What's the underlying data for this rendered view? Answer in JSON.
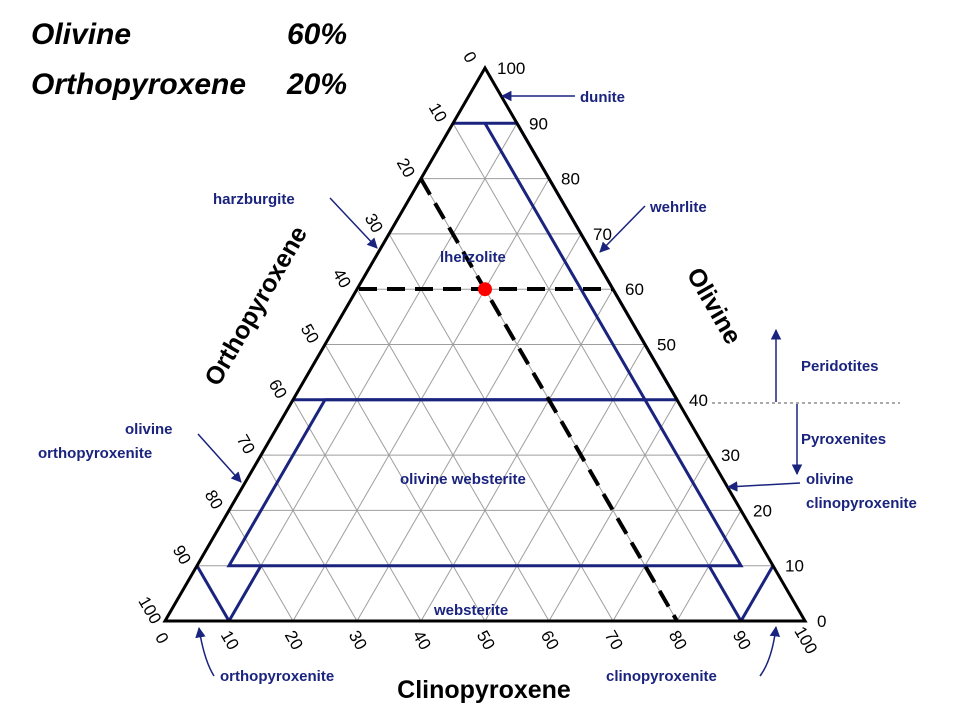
{
  "header": {
    "mineral_1": "Olivine",
    "value_1": "60%",
    "mineral_2": "Orthopyroxene",
    "value_2": "20%"
  },
  "axes": {
    "left_title": "Orthopyroxene",
    "right_title": "Olivine",
    "bottom_title": "Clinopyroxene",
    "left_ticks": [
      "0",
      "10",
      "20",
      "30",
      "40",
      "50",
      "60",
      "70",
      "80",
      "90",
      "100"
    ],
    "right_ticks": [
      "0",
      "10",
      "20",
      "30",
      "40",
      "50",
      "60",
      "70",
      "80",
      "90",
      "100"
    ],
    "bottom_ticks": [
      "10",
      "20",
      "30",
      "40",
      "50",
      "60",
      "70",
      "80",
      "90",
      "100"
    ]
  },
  "fields": {
    "dunite": "dunite",
    "harzburgite": "harzburgite",
    "wehrlite": "wehrlite",
    "lherzolite": "lherzolite",
    "olivine_orthopyroxenite_1": "olivine",
    "olivine_orthopyroxenite_2": "orthopyroxenite",
    "olivine_websterite": "olivine websterite",
    "olivine_clinopyroxenite_1": "olivine",
    "olivine_clinopyroxenite_2": "clinopyroxenite",
    "websterite": "websterite",
    "orthopyroxenite": "orthopyroxenite",
    "clinopyroxenite": "clinopyroxenite"
  },
  "groups": {
    "peridotites": "Peridotites",
    "pyroxenites": "Pyroxenites"
  },
  "sample_point": {
    "olivine": 60,
    "orthopyroxene": 20,
    "clinopyroxene": 20,
    "color": "#ff0000"
  },
  "colors": {
    "field_lines": "#1a237e",
    "grid": "#9e9e9e",
    "frame": "#000000"
  }
}
